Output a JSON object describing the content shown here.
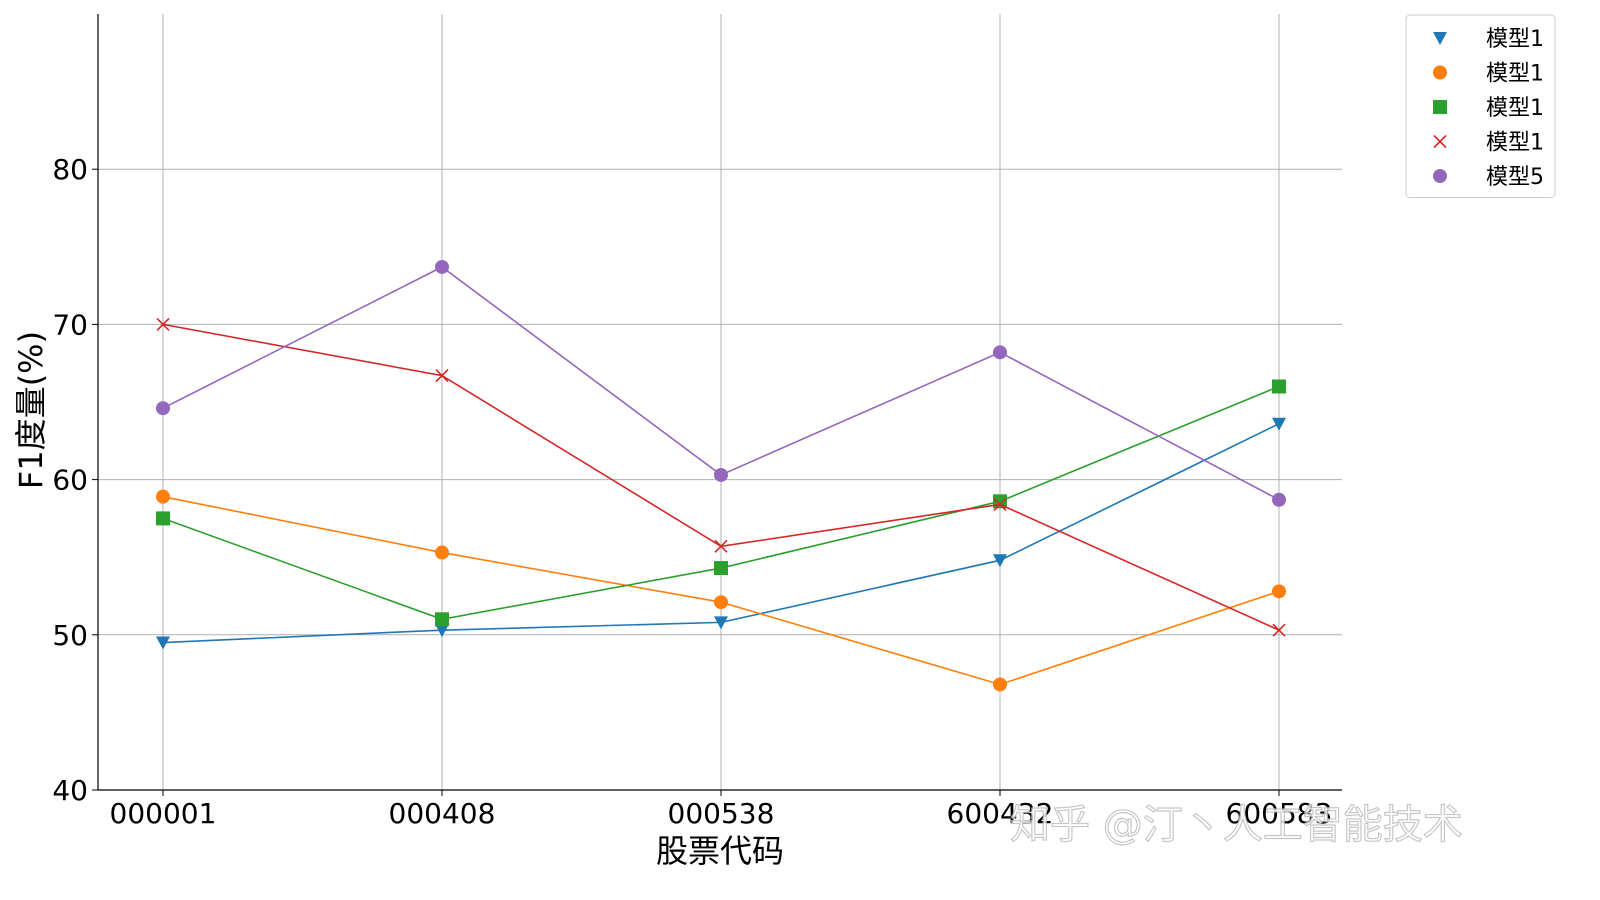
{
  "chart_data": {
    "type": "line",
    "title": "",
    "xlabel": "股票代码",
    "ylabel": "F1度量(%)",
    "categories": [
      "000001",
      "000408",
      "000538",
      "600432",
      "600583"
    ],
    "ylim": [
      40,
      90
    ],
    "yticks": [
      40,
      50,
      60,
      70,
      80
    ],
    "grid": true,
    "legend_position": "outside-top-right",
    "series": [
      {
        "name": "模型1",
        "marker": "triangle-down",
        "color": "#1f77b4",
        "values": [
          49.5,
          50.3,
          50.8,
          54.8,
          63.6
        ]
      },
      {
        "name": "模型1",
        "marker": "circle",
        "color": "#ff7f0e",
        "values": [
          58.9,
          55.3,
          52.1,
          46.8,
          52.8
        ]
      },
      {
        "name": "模型1",
        "marker": "square",
        "color": "#2ca02c",
        "values": [
          57.5,
          51.0,
          54.3,
          58.6,
          66.0
        ]
      },
      {
        "name": "模型1",
        "marker": "x",
        "color": "#d62728",
        "values": [
          70.0,
          66.7,
          55.7,
          58.4,
          50.3
        ]
      },
      {
        "name": "模型5",
        "marker": "circle",
        "color": "#9467bd",
        "values": [
          64.6,
          73.7,
          60.3,
          68.2,
          58.7
        ]
      }
    ]
  },
  "watermark": {
    "text": "知乎 @汀丶人工智能技术"
  }
}
